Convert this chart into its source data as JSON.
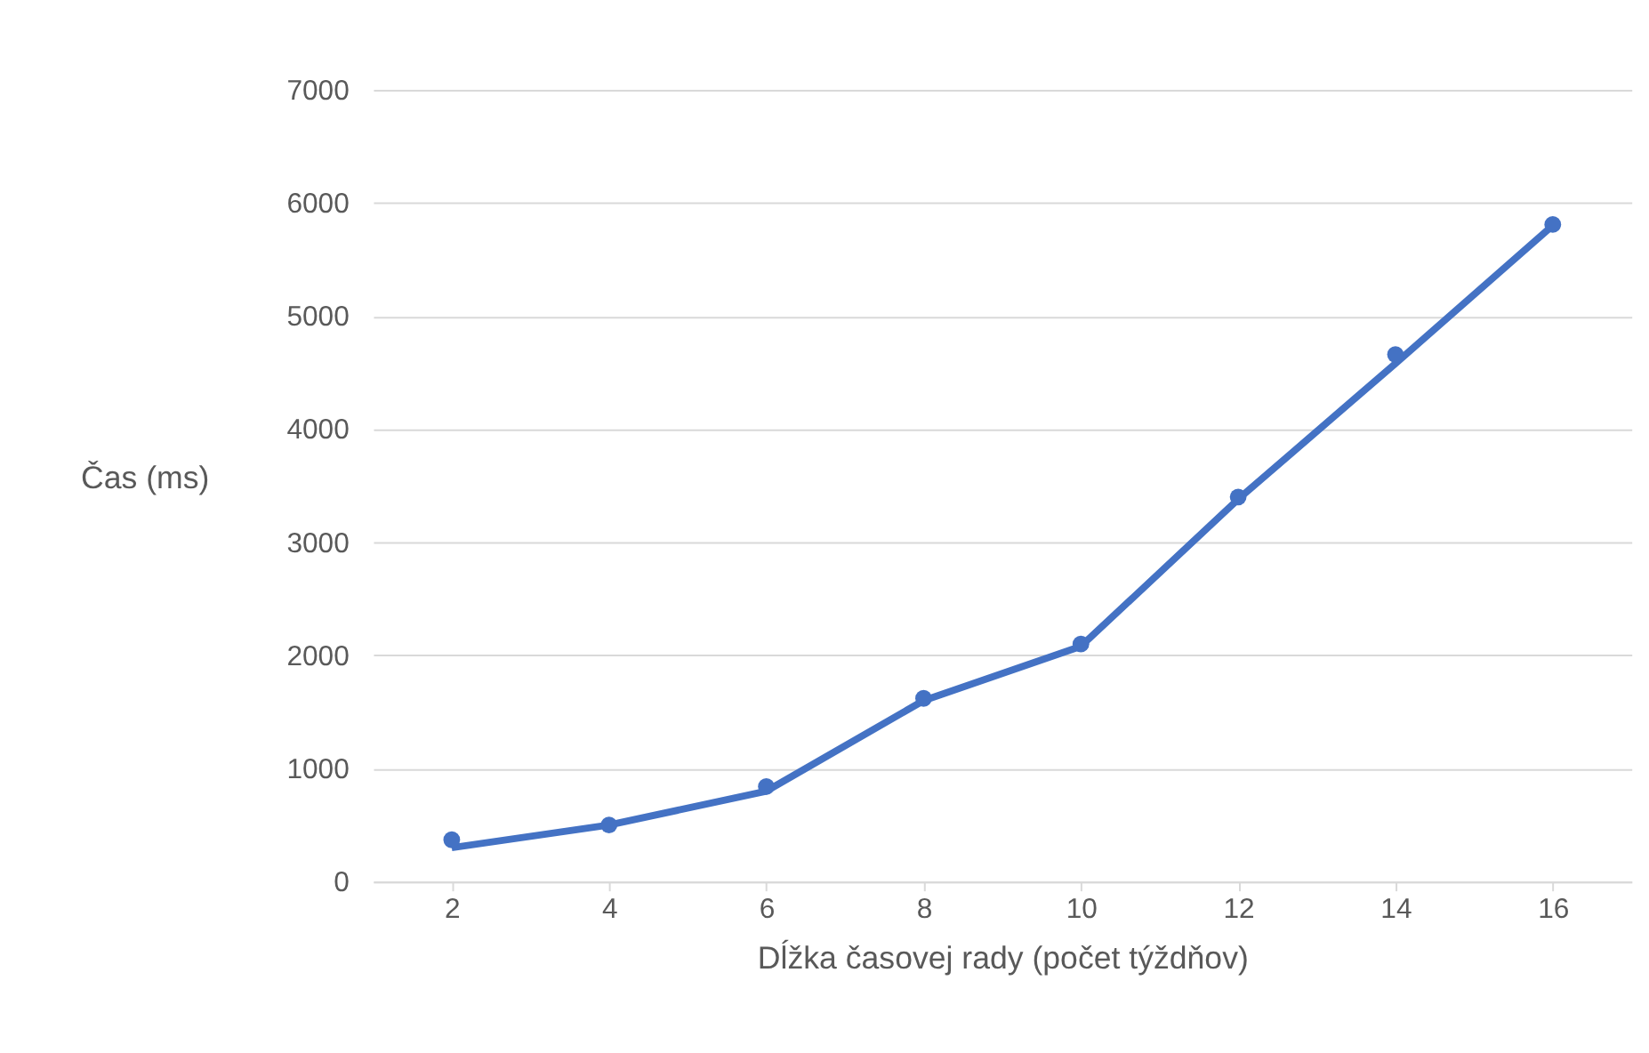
{
  "chart_data": {
    "type": "line",
    "xlabel": "Dĺžka časovej rady (počet týždňov)",
    "ylabel": "Čas (ms)",
    "categories": [
      "2",
      "4",
      "6",
      "8",
      "10",
      "12",
      "14",
      "16"
    ],
    "series": [
      {
        "type": "scatter",
        "color": "#4472c4",
        "marker": "circle",
        "values": [
          370,
          500,
          840,
          1620,
          2100,
          3400,
          4660,
          5810
        ]
      },
      {
        "color": "#4472c4",
        "marker": "none",
        "line_style": "solid",
        "values": [
          300,
          500,
          800,
          1600,
          2080,
          3380,
          4580,
          5800
        ]
      }
    ],
    "ylim": [
      0,
      7000
    ],
    "yticks": [
      0,
      1000,
      2000,
      3000,
      4000,
      5000,
      6000,
      7000
    ],
    "grid": "y",
    "legend": false
  }
}
